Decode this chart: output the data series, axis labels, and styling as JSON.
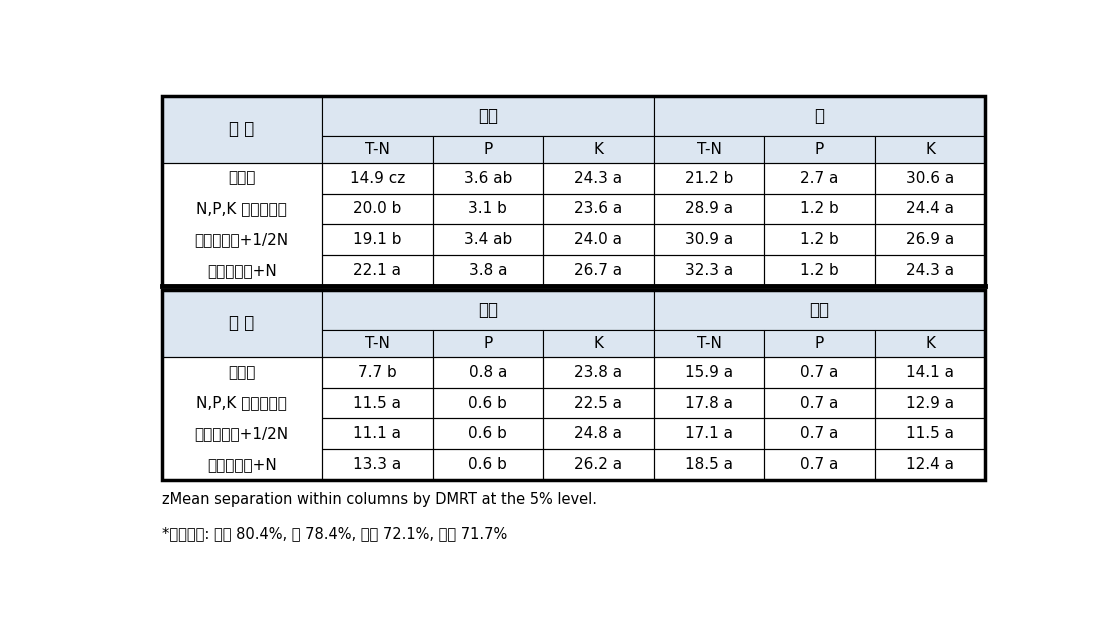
{
  "footer1": "zMean separation within columns by DMRT at the 5% level.",
  "footer2": "*수분함량: 열매 80.4%, 잎 78.4%, 줄기 72.1%, 부리 71.7%",
  "section1": {
    "group1_header": "열매",
    "group2_header": "잎",
    "treatment_header": "잘 리",
    "sub_headers": [
      "T-N",
      "P",
      "K",
      "T-N",
      "P",
      "K"
    ],
    "treatments": [
      "무비구",
      "N,P,K 표준시비구",
      "풋거름작물+1/2N",
      "풋거름작물+N"
    ],
    "data": [
      [
        "14.9 cz",
        "3.6 ab",
        "24.3 a",
        "21.2 b",
        "2.7 a",
        "30.6 a"
      ],
      [
        "20.0 b",
        "3.1 b",
        "23.6 a",
        "28.9 a",
        "1.2 b",
        "24.4 a"
      ],
      [
        "19.1 b",
        "3.4 ab",
        "24.0 a",
        "30.9 a",
        "1.2 b",
        "26.9 a"
      ],
      [
        "22.1 a",
        "3.8 a",
        "26.7 a",
        "32.3 a",
        "1.2 b",
        "24.3 a"
      ]
    ]
  },
  "section2": {
    "group1_header": "줄기",
    "group2_header": "부리",
    "treatment_header": "잘 리",
    "sub_headers": [
      "T-N",
      "P",
      "K",
      "T-N",
      "P",
      "K"
    ],
    "treatments": [
      "무비구",
      "N,P,K 표준시비구",
      "풋거름작물+1/2N",
      "풋거름작물+N"
    ],
    "data": [
      [
        "7.7 b",
        "0.8 a",
        "23.8 a",
        "15.9 a",
        "0.7 a",
        "14.1 a"
      ],
      [
        "11.5 a",
        "0.6 b",
        "22.5 a",
        "17.8 a",
        "0.7 a",
        "12.9 a"
      ],
      [
        "11.1 a",
        "0.6 b",
        "24.8 a",
        "17.1 a",
        "0.7 a",
        "11.5 a"
      ],
      [
        "13.3 a",
        "0.6 b",
        "26.2 a",
        "18.5 a",
        "0.7 a",
        "12.4 a"
      ]
    ]
  },
  "header_bg": "#dce6f1",
  "bg_color": "#ffffff",
  "thick_lw": 2.5,
  "thin_lw": 0.8,
  "sep_lw": 3.5
}
